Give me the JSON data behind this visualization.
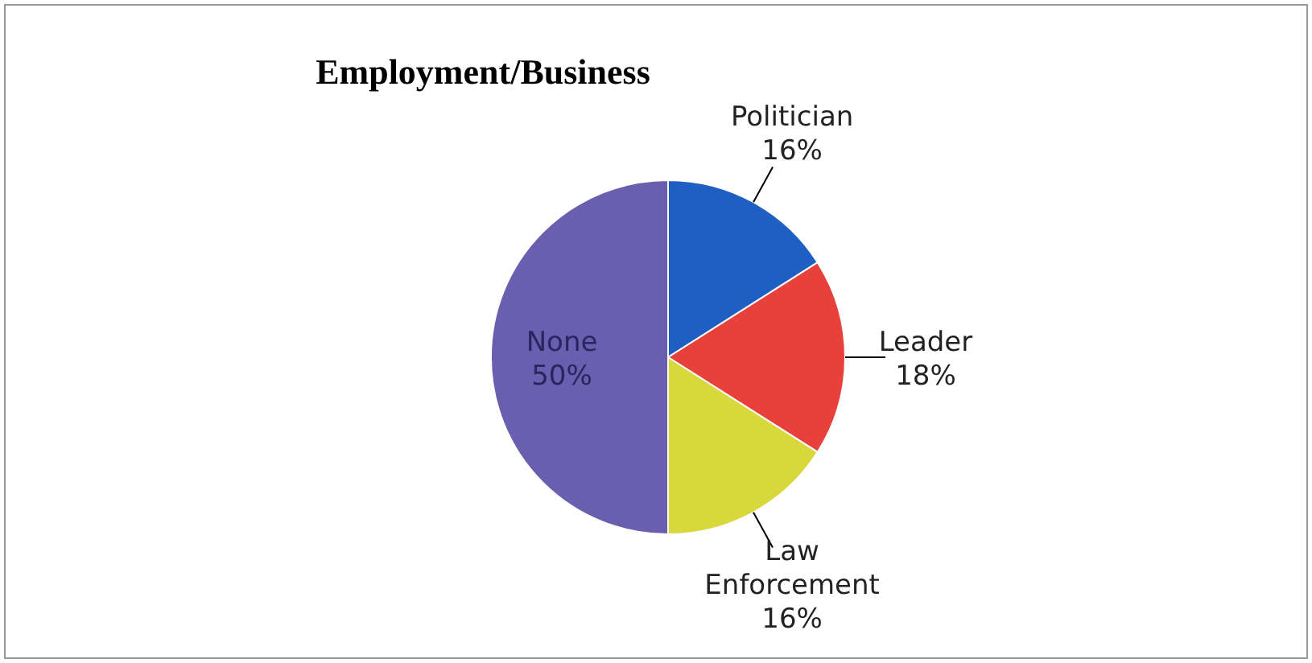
{
  "chart_data": {
    "type": "pie",
    "title": "Employment/Business",
    "categories": [
      "Politician",
      "Leader",
      "Law Enforcement",
      "None"
    ],
    "values": [
      16,
      18,
      16,
      50
    ],
    "colors": [
      "#1f5fc4",
      "#e8403a",
      "#d8d83c",
      "#6a5fae"
    ],
    "value_labels": [
      "16%",
      "18%",
      "16%",
      "50%"
    ]
  }
}
